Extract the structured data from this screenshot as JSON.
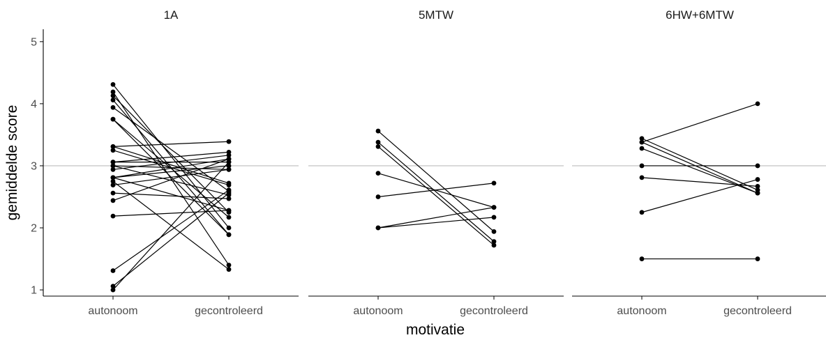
{
  "chart_data": {
    "type": "line",
    "xlabel": "motivatie",
    "ylabel": "gemiddelde score",
    "ylim": [
      0.9,
      5.2
    ],
    "yticks": [
      1,
      2,
      3,
      4,
      5
    ],
    "categories": [
      "autonoom",
      "gecontroleerd"
    ],
    "reference_line": 3,
    "grid": false,
    "colors": {
      "line": "#000000",
      "point": "#000000",
      "reference": "#bdbdbd",
      "axis": "#000000"
    },
    "panels": [
      {
        "title": "1A",
        "pairs": [
          [
            4.31,
            2.0
          ],
          [
            4.19,
            1.4
          ],
          [
            4.13,
            2.25
          ],
          [
            4.06,
            1.89
          ],
          [
            3.94,
            2.59
          ],
          [
            3.75,
            2.17
          ],
          [
            3.75,
            1.89
          ],
          [
            3.31,
            3.39
          ],
          [
            3.31,
            2.72
          ],
          [
            3.25,
            2.69
          ],
          [
            3.06,
            3.22
          ],
          [
            3.06,
            3.06
          ],
          [
            3.0,
            2.94
          ],
          [
            3.0,
            2.53
          ],
          [
            2.94,
            3.17
          ],
          [
            2.81,
            3.11
          ],
          [
            2.81,
            3.0
          ],
          [
            2.81,
            2.28
          ],
          [
            2.75,
            1.33
          ],
          [
            2.69,
            2.94
          ],
          [
            2.56,
            2.47
          ],
          [
            2.44,
            3.11
          ],
          [
            2.19,
            2.28
          ],
          [
            1.31,
            2.61
          ],
          [
            1.06,
            2.56
          ],
          [
            1.0,
            3.06
          ]
        ]
      },
      {
        "title": "5MTW",
        "pairs": [
          [
            3.56,
            1.94
          ],
          [
            3.38,
            1.78
          ],
          [
            3.31,
            1.72
          ],
          [
            2.88,
            2.33
          ],
          [
            2.5,
            2.72
          ],
          [
            2.0,
            2.33
          ],
          [
            2.0,
            2.17
          ]
        ]
      },
      {
        "title": "6HW+6MTW",
        "pairs": [
          [
            3.44,
            2.61
          ],
          [
            3.38,
            2.56
          ],
          [
            3.28,
            2.56
          ],
          [
            3.0,
            3.0
          ],
          [
            2.81,
            2.67
          ],
          [
            2.25,
            2.78
          ],
          [
            1.5,
            1.5
          ],
          [
            3.38,
            4.0
          ]
        ]
      }
    ]
  }
}
